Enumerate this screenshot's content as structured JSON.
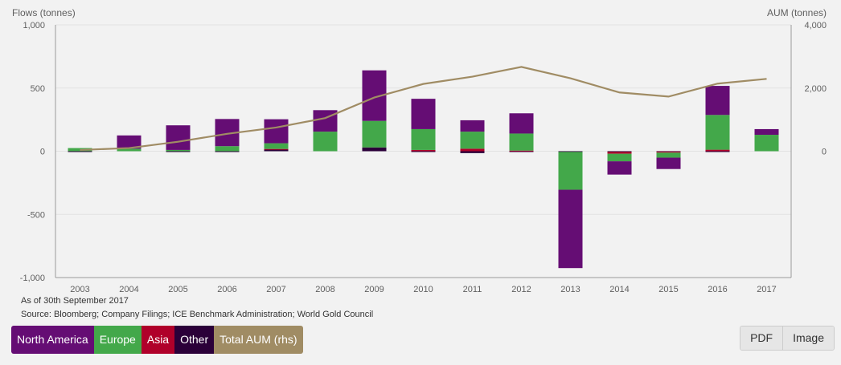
{
  "chart_data": {
    "type": "bar",
    "stacked": true,
    "categories": [
      "2003",
      "2004",
      "2005",
      "2006",
      "2007",
      "2008",
      "2009",
      "2010",
      "2011",
      "2012",
      "2013",
      "2014",
      "2015",
      "2016",
      "2017"
    ],
    "series": [
      {
        "name": "North America",
        "color": "#650d74",
        "axis": "left",
        "values": [
          0,
          105,
          195,
          215,
          190,
          170,
          400,
          240,
          90,
          160,
          -620,
          -105,
          -90,
          230,
          45
        ]
      },
      {
        "name": "Europe",
        "color": "#43a84a",
        "axis": "left",
        "values": [
          25,
          20,
          10,
          40,
          45,
          155,
          210,
          165,
          135,
          135,
          -300,
          -60,
          -40,
          275,
          130
        ]
      },
      {
        "name": "Asia",
        "color": "#b0002a",
        "axis": "left",
        "values": [
          0,
          0,
          0,
          0,
          3,
          0,
          0,
          10,
          20,
          5,
          0,
          -15,
          -8,
          12,
          0
        ]
      },
      {
        "name": "Other",
        "color": "#2b0039",
        "axis": "left",
        "values": [
          -5,
          0,
          -5,
          -3,
          15,
          0,
          30,
          -5,
          -15,
          -3,
          -5,
          -5,
          -3,
          -3,
          0
        ]
      }
    ],
    "line": {
      "name": "Total AUM (rhs)",
      "color": "#a08c64",
      "axis": "right",
      "values": [
        40,
        100,
        300,
        550,
        750,
        1050,
        1700,
        2130,
        2360,
        2670,
        2310,
        1860,
        1730,
        2140,
        2290
      ]
    },
    "ylabel": "Flows (tonnes)",
    "y2label": "AUM (tonnes)",
    "ylim": [
      -1000,
      1000
    ],
    "y2lim": [
      -4000,
      4000
    ],
    "yticks": [
      {
        "v": 1000,
        "label": "1,000"
      },
      {
        "v": 500,
        "label": "500"
      },
      {
        "v": 0,
        "label": "0"
      },
      {
        "v": -500,
        "label": "-500"
      },
      {
        "v": -1000,
        "label": "-1,000"
      }
    ],
    "y2ticks": [
      {
        "v": 4000,
        "label": "4,000"
      },
      {
        "v": 2000,
        "label": "2,000"
      },
      {
        "v": 0,
        "label": "0"
      }
    ],
    "grid": true,
    "legend_position": "bottom-left"
  },
  "notes": {
    "as_of": "As of 30th September 2017",
    "source": "Source: Bloomberg; Company Filings; ICE Benchmark Administration; World Gold Council"
  },
  "legend": [
    {
      "label": "North America",
      "color": "#650d74"
    },
    {
      "label": "Europe",
      "color": "#43a84a"
    },
    {
      "label": "Asia",
      "color": "#b0002a"
    },
    {
      "label": "Other",
      "color": "#2b0039"
    },
    {
      "label": "Total AUM (rhs)",
      "color": "#a08c64"
    }
  ],
  "export": {
    "pdf_label": "PDF",
    "image_label": "Image"
  }
}
